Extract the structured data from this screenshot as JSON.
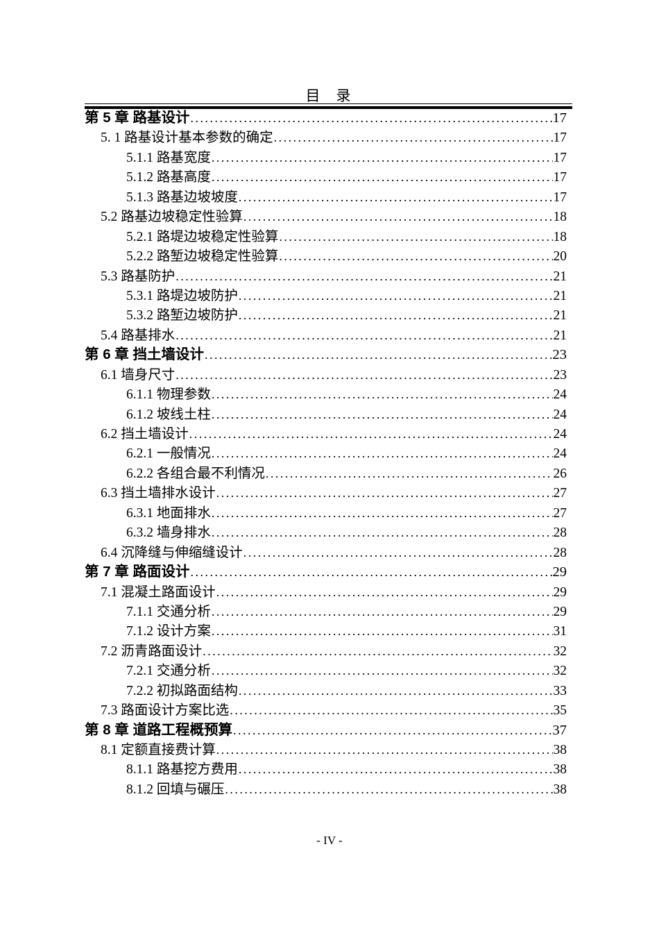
{
  "colors": {
    "text": "#000000",
    "background": "#ffffff"
  },
  "header": {
    "title": "目　录"
  },
  "toc": {
    "entries": [
      {
        "level": 1,
        "label": "第 5 章 路基设计",
        "page": "17"
      },
      {
        "level": 2,
        "label": "5. 1 路基设计基本参数的确定",
        "page": "17"
      },
      {
        "level": 3,
        "label": "5.1.1 路基宽度",
        "page": "17"
      },
      {
        "level": 3,
        "label": "5.1.2 路基高度",
        "page": "17"
      },
      {
        "level": 3,
        "label": "5.1.3 路基边坡坡度",
        "page": "17"
      },
      {
        "level": 2,
        "label": "5.2 路基边坡稳定性验算",
        "page": "18"
      },
      {
        "level": 3,
        "label": "5.2.1 路堤边坡稳定性验算",
        "page": "18"
      },
      {
        "level": 3,
        "label": "5.2.2 路堑边坡稳定性验算",
        "page": "20"
      },
      {
        "level": 2,
        "label": "5.3 路基防护",
        "page": "21"
      },
      {
        "level": 3,
        "label": "5.3.1 路堤边坡防护",
        "page": "21"
      },
      {
        "level": 3,
        "label": "5.3.2 路堑边坡防护",
        "page": "21"
      },
      {
        "level": 2,
        "label": "5.4 路基排水",
        "page": "21"
      },
      {
        "level": 1,
        "label": "第  6 章 挡土墙设计",
        "page": "23"
      },
      {
        "level": 2,
        "label": "6.1 墙身尺寸",
        "page": "23"
      },
      {
        "level": 3,
        "label": "6.1.1 物理参数",
        "page": "24"
      },
      {
        "level": 3,
        "label": "6.1.2 坡线土柱",
        "page": "24"
      },
      {
        "level": 2,
        "label": "6.2 挡土墙设计",
        "page": "24"
      },
      {
        "level": 3,
        "label": "6.2.1 一般情况",
        "page": "24"
      },
      {
        "level": 3,
        "label": "6.2.2 各组合最不利情况",
        "page": "26"
      },
      {
        "level": 2,
        "label": "6.3 挡土墙排水设计",
        "page": "27"
      },
      {
        "level": 3,
        "label": "6.3.1 地面排水",
        "page": "27"
      },
      {
        "level": 3,
        "label": "6.3.2 墙身排水",
        "page": "28"
      },
      {
        "level": 2,
        "label": "6.4 沉降缝与伸缩缝设计",
        "page": "28"
      },
      {
        "level": 1,
        "label": "第 7 章 路面设计",
        "page": "29"
      },
      {
        "level": 2,
        "label": "7.1 混凝土路面设计",
        "page": "29"
      },
      {
        "level": 3,
        "label": "7.1.1 交通分析",
        "page": "29"
      },
      {
        "level": 3,
        "label": "7.1.2 设计方案",
        "page": "31"
      },
      {
        "level": 2,
        "label": "7.2 沥青路面设计",
        "page": "32"
      },
      {
        "level": 3,
        "label": "7.2.1 交通分析",
        "page": "32"
      },
      {
        "level": 3,
        "label": "7.2.2 初拟路面结构",
        "page": "33"
      },
      {
        "level": 2,
        "label": "7.3 路面设计方案比选",
        "page": "35"
      },
      {
        "level": 1,
        "label": "第 8 章 道路工程概预算",
        "page": "37"
      },
      {
        "level": 2,
        "label": "8.1 定额直接费计算",
        "page": "38"
      },
      {
        "level": 3,
        "label": "8.1.1 路基挖方费用",
        "page": "38"
      },
      {
        "level": 3,
        "label": "8.1.2 回填与碾压",
        "page": "38"
      }
    ]
  },
  "footer": {
    "page_label": "- IV -"
  }
}
